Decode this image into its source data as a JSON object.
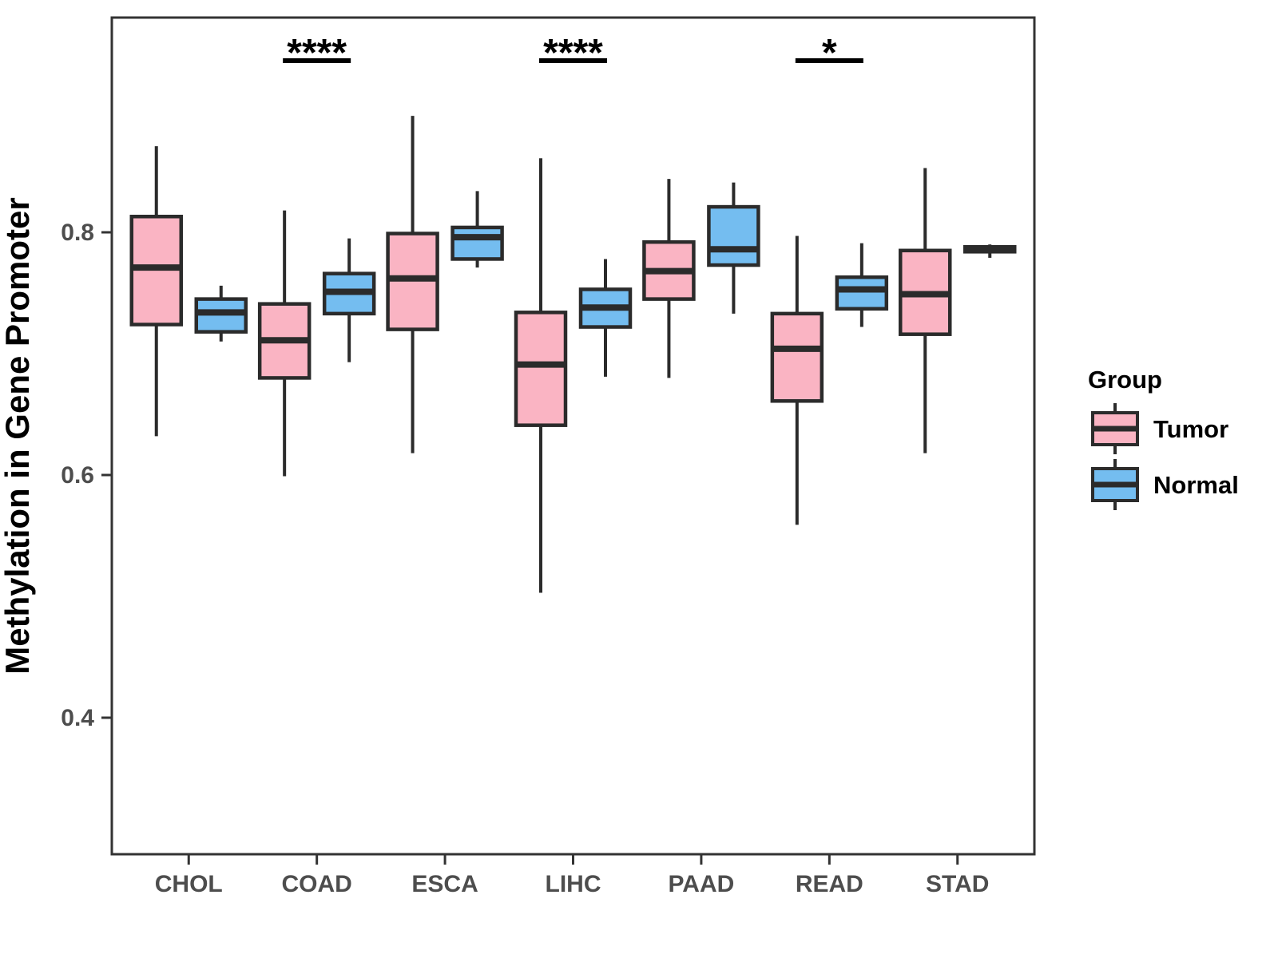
{
  "figure": {
    "background": "#FFFFFF"
  },
  "axes": {
    "y_title": "Methylation in Gene Promoter",
    "y_ticks": [
      0.4,
      0.6,
      0.8
    ],
    "y_tick_labels": [
      "0.4",
      "0.6",
      "0.8"
    ],
    "tick_label_color": "#4D4D4D",
    "axis_line_color": "#333333"
  },
  "legend": {
    "title": "Group",
    "items": [
      {
        "label": "Tumor",
        "color": "#FAB4C3"
      },
      {
        "label": "Normal",
        "color": "#74BDF0"
      }
    ]
  },
  "chart_data": {
    "type": "boxplot",
    "title": "",
    "xlabel": "",
    "ylabel": "Methylation in Gene Promoter",
    "ylim": [
      0.287,
      0.977
    ],
    "grid": false,
    "legend_position": "right",
    "categories": [
      "CHOL",
      "COAD",
      "ESCA",
      "LIHC",
      "PAAD",
      "READ",
      "STAD"
    ],
    "series": [
      {
        "name": "Tumor",
        "fill": "#FAB4C3",
        "stroke": "#2B2B2B",
        "boxes": [
          {
            "whisker_low": 0.632,
            "q1": 0.724,
            "median": 0.771,
            "q3": 0.813,
            "whisker_high": 0.871
          },
          {
            "whisker_low": 0.599,
            "q1": 0.68,
            "median": 0.711,
            "q3": 0.741,
            "whisker_high": 0.818
          },
          {
            "whisker_low": 0.618,
            "q1": 0.72,
            "median": 0.762,
            "q3": 0.799,
            "whisker_high": 0.896
          },
          {
            "whisker_low": 0.503,
            "q1": 0.641,
            "median": 0.691,
            "q3": 0.734,
            "whisker_high": 0.861
          },
          {
            "whisker_low": 0.68,
            "q1": 0.745,
            "median": 0.768,
            "q3": 0.792,
            "whisker_high": 0.844
          },
          {
            "whisker_low": 0.559,
            "q1": 0.661,
            "median": 0.704,
            "q3": 0.733,
            "whisker_high": 0.797
          },
          {
            "whisker_low": 0.618,
            "q1": 0.716,
            "median": 0.749,
            "q3": 0.785,
            "whisker_high": 0.853
          }
        ]
      },
      {
        "name": "Normal",
        "fill": "#74BDF0",
        "stroke": "#2B2B2B",
        "boxes": [
          {
            "whisker_low": 0.71,
            "q1": 0.718,
            "median": 0.734,
            "q3": 0.745,
            "whisker_high": 0.756
          },
          {
            "whisker_low": 0.693,
            "q1": 0.733,
            "median": 0.751,
            "q3": 0.766,
            "whisker_high": 0.795
          },
          {
            "whisker_low": 0.771,
            "q1": 0.778,
            "median": 0.796,
            "q3": 0.804,
            "whisker_high": 0.834
          },
          {
            "whisker_low": 0.681,
            "q1": 0.722,
            "median": 0.738,
            "q3": 0.753,
            "whisker_high": 0.778
          },
          {
            "whisker_low": 0.733,
            "q1": 0.773,
            "median": 0.786,
            "q3": 0.821,
            "whisker_high": 0.841
          },
          {
            "whisker_low": 0.722,
            "q1": 0.737,
            "median": 0.753,
            "q3": 0.763,
            "whisker_high": 0.791
          },
          {
            "whisker_low": 0.779,
            "q1": 0.784,
            "median": 0.786,
            "q3": 0.788,
            "whisker_high": 0.79
          }
        ]
      }
    ],
    "annotations": [
      {
        "category": "COAD",
        "label": "****"
      },
      {
        "category": "LIHC",
        "label": "****"
      },
      {
        "category": "READ",
        "label": "*"
      }
    ]
  }
}
